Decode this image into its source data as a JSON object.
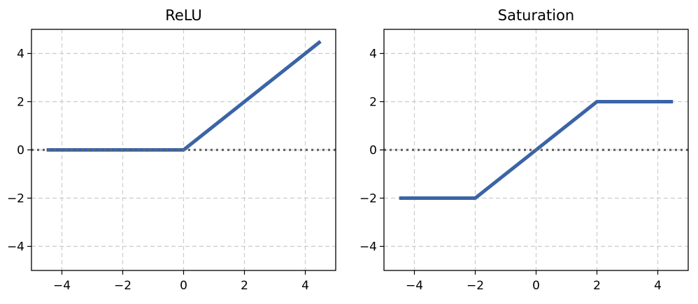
{
  "chart_data": [
    {
      "type": "line",
      "title": "ReLU",
      "xlabel": "",
      "ylabel": "",
      "xlim": [
        -5,
        5
      ],
      "ylim": [
        -5,
        5
      ],
      "xticks": [
        -4,
        -2,
        0,
        2,
        4
      ],
      "yticks": [
        -4,
        -2,
        0,
        2,
        4
      ],
      "xtick_labels": [
        "−4",
        "−2",
        "0",
        "2",
        "4"
      ],
      "ytick_labels": [
        "−4",
        "−2",
        "0",
        "2",
        "4"
      ],
      "grid": true,
      "zero_reference_line": 0,
      "series": [
        {
          "x": [
            -4.5,
            0,
            4.5
          ],
          "y": [
            0,
            0,
            4.5
          ]
        }
      ]
    },
    {
      "type": "line",
      "title": "Saturation",
      "xlabel": "",
      "ylabel": "",
      "xlim": [
        -5,
        5
      ],
      "ylim": [
        -5,
        5
      ],
      "xticks": [
        -4,
        -2,
        0,
        2,
        4
      ],
      "yticks": [
        -4,
        -2,
        0,
        2,
        4
      ],
      "xtick_labels": [
        "−4",
        "−2",
        "0",
        "2",
        "4"
      ],
      "ytick_labels": [
        "−4",
        "−2",
        "0",
        "2",
        "4"
      ],
      "grid": true,
      "zero_reference_line": 0,
      "series": [
        {
          "x": [
            -4.5,
            -2,
            2,
            4.5
          ],
          "y": [
            -2,
            -2,
            2,
            2
          ]
        }
      ]
    }
  ],
  "colors": {
    "series_line": "#3a64a6",
    "reference_line": "#666666",
    "grid": "#cccccc",
    "axes": "#000000"
  }
}
